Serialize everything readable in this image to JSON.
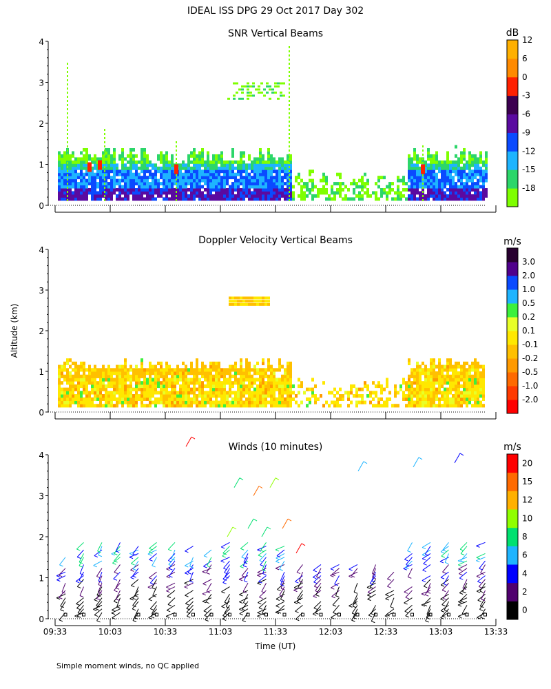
{
  "main_title": "IDEAL ISS DPG  29 Oct 2017 Day 302",
  "shared_ylabel": "Altitude (km)",
  "footnote": "Simple moment winds, no QC applied",
  "chart_data": [
    {
      "type": "heatmap",
      "title": "SNR Vertical Beams",
      "ylim": [
        0,
        4
      ],
      "yticks": [
        "0",
        "1",
        "2",
        "3",
        "4"
      ],
      "colorbar": {
        "unit": "dB",
        "colors": [
          "#7fff00",
          "#2cd66a",
          "#1eb4ff",
          "#0a4aff",
          "#5a0aa0",
          "#3c0050",
          "#ff2000",
          "#ff8a00",
          "#ffb000"
        ],
        "labels": [
          "-18",
          "-15",
          "-12",
          "-9",
          "-6",
          "-3",
          "0",
          "6",
          "12"
        ]
      }
    },
    {
      "type": "heatmap",
      "title": "Doppler Velocity Vertical Beams",
      "ylim": [
        0,
        4
      ],
      "yticks": [
        "0",
        "1",
        "2",
        "3",
        "4"
      ],
      "colorbar": {
        "unit": "m/s",
        "colors": [
          "#ff0000",
          "#ff3a00",
          "#ff6a00",
          "#ff9a00",
          "#ffc000",
          "#ffe800",
          "#e8ff28",
          "#3cf03c",
          "#1eb4ff",
          "#0a4aff",
          "#50008c",
          "#280030"
        ],
        "labels": [
          "-2.0",
          "-1.0",
          "-0.5",
          "-0.2",
          "-0.1",
          "0.1",
          "0.2",
          "0.5",
          "1.0",
          "2.0",
          "3.0"
        ]
      }
    },
    {
      "type": "scatter",
      "title": "Winds (10 minutes)",
      "ylim": [
        0,
        4
      ],
      "yticks": [
        "0",
        "1",
        "2",
        "3",
        "4"
      ],
      "xlabel": "Time (UT)",
      "xticks": [
        "09:33",
        "10:03",
        "10:33",
        "11:03",
        "11:33",
        "12:03",
        "12:33",
        "13:03",
        "13:33"
      ],
      "colorbar": {
        "unit": "m/s",
        "colors": [
          "#000000",
          "#50006e",
          "#0000ff",
          "#1eb4ff",
          "#00e070",
          "#90ff00",
          "#ffb000",
          "#ff6a00",
          "#ff0000"
        ],
        "labels": [
          "0",
          "2",
          "4",
          "6",
          "8",
          "10",
          "12",
          "15",
          "20"
        ]
      }
    }
  ]
}
